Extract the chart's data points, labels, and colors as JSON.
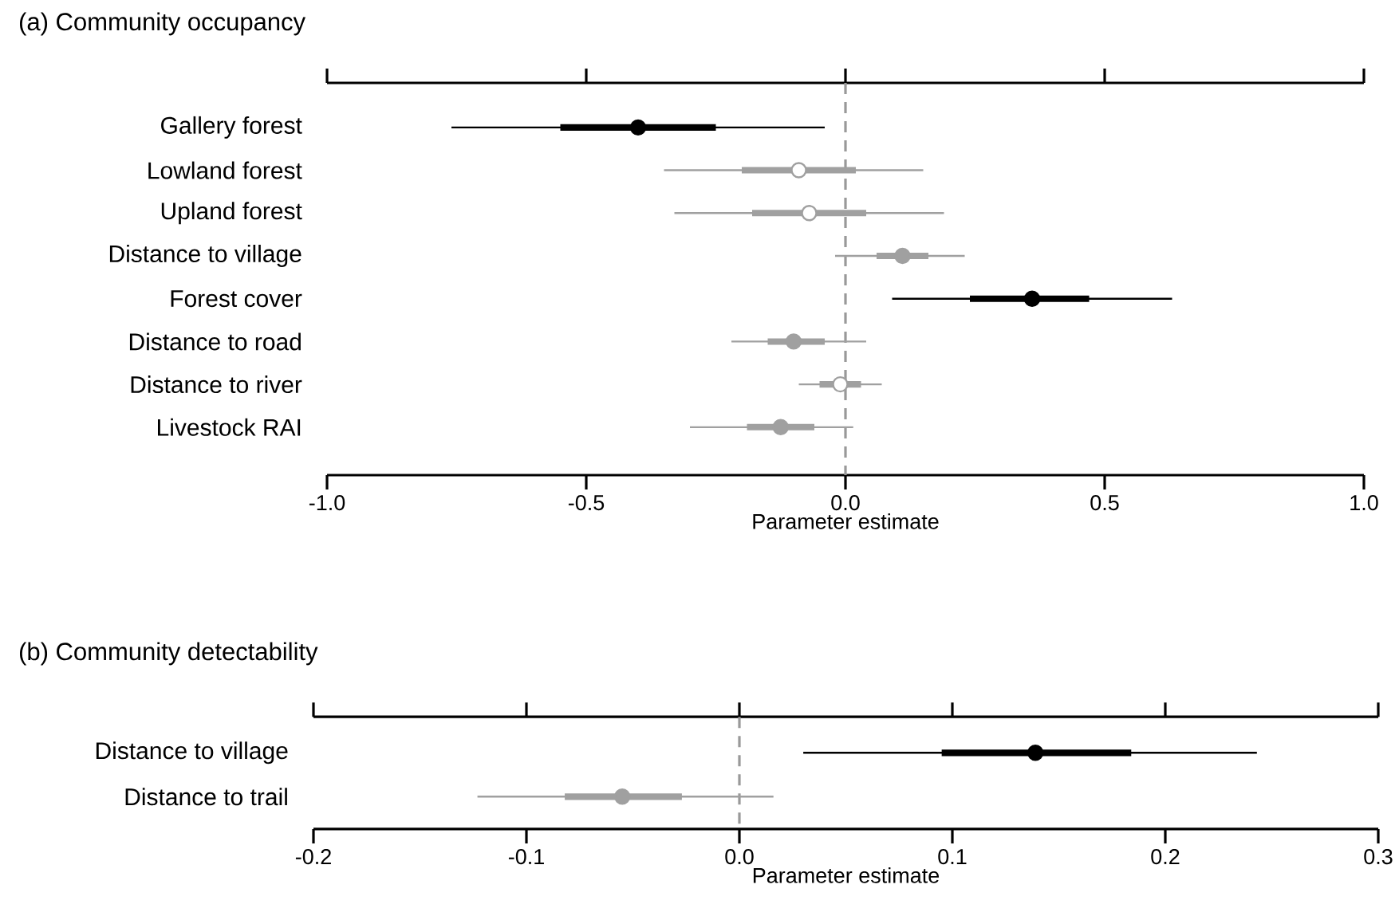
{
  "chart_data": [
    {
      "type": "box",
      "orientation": "horizontal",
      "title": "(a) Community occupancy",
      "xlabel": "Parameter estimate",
      "categories": [
        "Gallery forest",
        "Lowland forest",
        "Upland forest",
        "Distance to village",
        "Forest cover",
        "Distance to road",
        "Distance to river",
        "Livestock RAI"
      ],
      "series": [
        {
          "color": "#000000",
          "boxes": [
            {
              "low": -0.76,
              "q1": -0.55,
              "median": -0.4,
              "q3": -0.25,
              "high": -0.04
            },
            null,
            null,
            null,
            {
              "low": 0.09,
              "q1": 0.24,
              "median": 0.36,
              "q3": 0.47,
              "high": 0.63
            },
            null,
            null,
            null
          ]
        },
        {
          "color": "#a0a0a0",
          "boxes": [
            null,
            {
              "low": -0.35,
              "q1": -0.2,
              "median": -0.09,
              "q3": 0.02,
              "high": 0.15
            },
            {
              "low": -0.33,
              "q1": -0.18,
              "median": -0.07,
              "q3": 0.04,
              "high": 0.19
            },
            {
              "low": -0.02,
              "q1": 0.06,
              "median": 0.11,
              "q3": 0.16,
              "high": 0.23
            },
            null,
            {
              "low": -0.22,
              "q1": -0.15,
              "median": -0.1,
              "q3": -0.04,
              "high": 0.04
            },
            {
              "low": -0.09,
              "q1": -0.05,
              "median": -0.01,
              "q3": 0.03,
              "high": 0.07
            },
            {
              "low": -0.3,
              "q1": -0.19,
              "median": -0.125,
              "q3": -0.06,
              "high": 0.015
            }
          ]
        }
      ],
      "xlim": [
        -1,
        1
      ],
      "xticks": [
        {
          "value": -1,
          "label": "-1.0"
        },
        {
          "value": -0.5,
          "label": "-0.5"
        },
        {
          "value": 0,
          "label": "0.0"
        },
        {
          "value": 0.5,
          "label": "0.5"
        },
        {
          "value": 1,
          "label": "1.0"
        }
      ],
      "ref_lines": [
        {
          "axis": "x",
          "value": 0,
          "color": "#999999",
          "line_style": "dashed"
        }
      ]
    },
    {
      "type": "box",
      "orientation": "horizontal",
      "title": "(b) Community detectability",
      "xlabel": "Parameter estimate",
      "categories": [
        "Distance to village",
        "Distance to trail"
      ],
      "series": [
        {
          "color": "#000000",
          "boxes": [
            {
              "low": 0.03,
              "q1": 0.095,
              "median": 0.139,
              "q3": 0.184,
              "high": 0.243
            },
            null
          ]
        },
        {
          "color": "#a0a0a0",
          "boxes": [
            null,
            {
              "low": -0.123,
              "q1": -0.082,
              "median": -0.055,
              "q3": -0.027,
              "high": 0.016
            }
          ]
        }
      ],
      "xlim": [
        -0.2,
        0.3
      ],
      "xticks": [
        {
          "value": -0.2,
          "label": "-0.2"
        },
        {
          "value": -0.1,
          "label": "-0.1"
        },
        {
          "value": 0,
          "label": "0.0"
        },
        {
          "value": 0.1,
          "label": "0.1"
        },
        {
          "value": 0.2,
          "label": "0.2"
        },
        {
          "value": 0.3,
          "label": "0.3"
        }
      ],
      "ref_lines": [
        {
          "axis": "x",
          "value": 0,
          "color": "#999999",
          "line_style": "dashed"
        }
      ]
    }
  ]
}
